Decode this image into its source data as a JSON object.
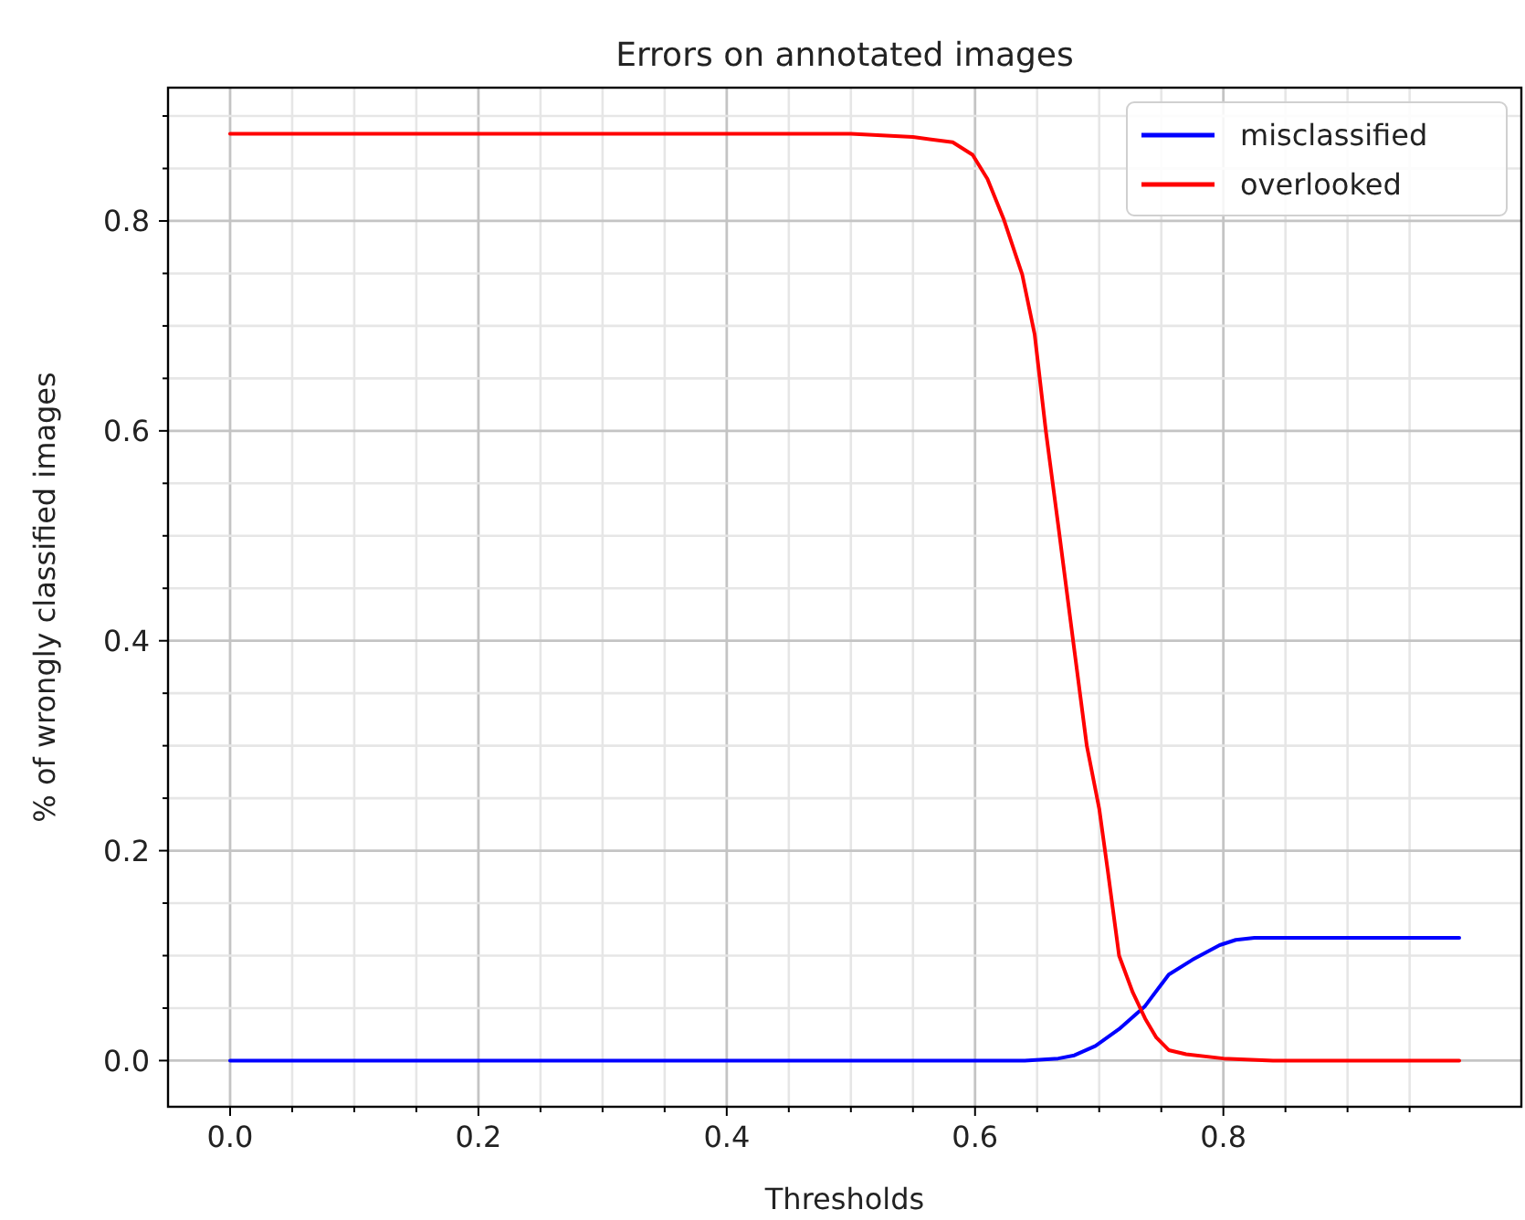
{
  "chart_data": {
    "type": "line",
    "title": "Errors on annotated images",
    "xlabel": "Thresholds",
    "ylabel": "% of wrongly classified images",
    "xlim": [
      -0.05,
      1.04
    ],
    "ylim": [
      -0.044,
      0.927
    ],
    "xticks": [
      {
        "value": 0,
        "label": "0.0"
      },
      {
        "value": 0.05,
        "label": null
      },
      {
        "value": 0.1,
        "label": null
      },
      {
        "value": 0.15,
        "label": null
      },
      0.2,
      {
        "value": 0.25,
        "label": null
      },
      {
        "value": 0.3,
        "label": null
      },
      {
        "value": 0.35,
        "label": null
      },
      0.4,
      {
        "value": 0.45,
        "label": null
      },
      {
        "value": 0.5,
        "label": null
      },
      {
        "value": 0.55,
        "label": null
      },
      0.6,
      {
        "value": 0.65,
        "label": null
      },
      {
        "value": 0.7,
        "label": null
      },
      {
        "value": 0.75,
        "label": null
      },
      0.8,
      {
        "value": 0.85,
        "label": null
      },
      {
        "value": 0.9,
        "label": null
      },
      {
        "value": 0.95,
        "label": null
      }
    ],
    "yticks": [
      {
        "value": 0,
        "label": "0.0"
      },
      {
        "value": 0.05,
        "label": null
      },
      {
        "value": 0.1,
        "label": null
      },
      {
        "value": 0.15,
        "label": null
      },
      0.2,
      {
        "value": 0.25,
        "label": null
      },
      {
        "value": 0.3,
        "label": null
      },
      {
        "value": 0.35,
        "label": null
      },
      0.4,
      {
        "value": 0.45,
        "label": null
      },
      {
        "value": 0.5,
        "label": null
      },
      {
        "value": 0.55,
        "label": null
      },
      0.6,
      {
        "value": 0.65,
        "label": null
      },
      {
        "value": 0.7,
        "label": null
      },
      {
        "value": 0.75,
        "label": null
      },
      0.8,
      {
        "value": 0.85,
        "label": null
      },
      {
        "value": 0.9,
        "label": null
      }
    ],
    "grid": true,
    "legend": "top right",
    "series": [
      {
        "name": "misclassified",
        "color": "#0000ff",
        "x": [
          0,
          0.64,
          0.667,
          0.68,
          0.697,
          0.716,
          0.737,
          0.756,
          0.775,
          0.797,
          0.81,
          0.825,
          0.99
        ],
        "values": [
          0,
          0,
          0.002,
          0.005,
          0.014,
          0.03,
          0.052,
          0.082,
          0.096,
          0.11,
          0.115,
          0.117,
          0.117
        ]
      },
      {
        "name": "overlooked",
        "color": "#ff0000",
        "x": [
          0,
          0.5,
          0.55,
          0.582,
          0.598,
          0.61,
          0.623,
          0.638,
          0.648,
          0.657,
          0.667,
          0.679,
          0.69,
          0.7,
          0.707,
          0.716,
          0.727,
          0.737,
          0.746,
          0.756,
          0.77,
          0.8,
          0.84,
          0.99
        ],
        "values": [
          0.883,
          0.883,
          0.88,
          0.875,
          0.863,
          0.84,
          0.802,
          0.749,
          0.692,
          0.6,
          0.51,
          0.4,
          0.3,
          0.24,
          0.18,
          0.1,
          0.065,
          0.04,
          0.022,
          0.01,
          0.006,
          0.002,
          0,
          0
        ]
      }
    ]
  }
}
